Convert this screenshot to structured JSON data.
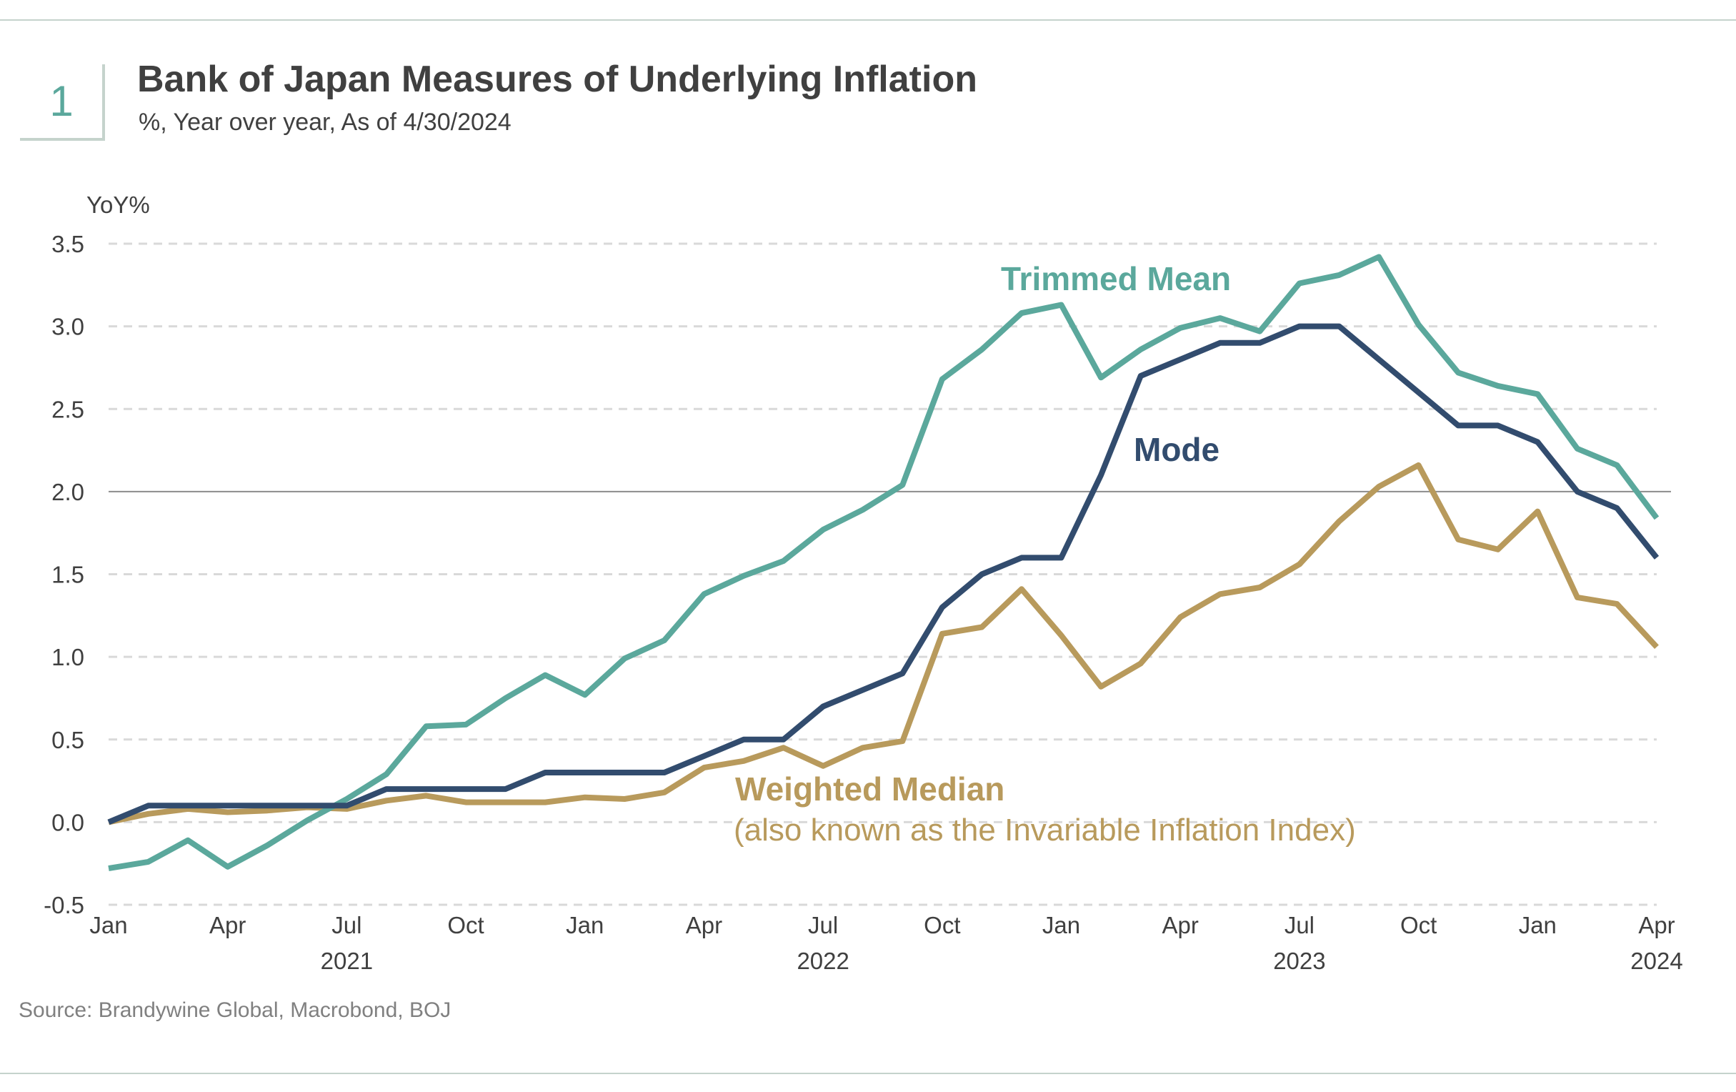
{
  "header": {
    "number": "1",
    "title": "Bank of Japan Measures of Underlying Inflation",
    "subtitle": "%, Year over year, As of 4/30/2024"
  },
  "source": "Source: Brandywine Global, Macrobond, BOJ",
  "chart_data": {
    "type": "line",
    "title": "Bank of Japan Measures of Underlying Inflation",
    "subtitle": "%, Year over year, As of 4/30/2024",
    "ylabel": "YoY%",
    "ylim": [
      -0.5,
      3.5
    ],
    "yticks": [
      "3.5",
      "3.0",
      "2.5",
      "2.0",
      "1.5",
      "1.0",
      "0.5",
      "0.0",
      "-0.5"
    ],
    "ytick_values": [
      3.5,
      3.0,
      2.5,
      2.0,
      1.5,
      1.0,
      0.5,
      0.0,
      -0.5
    ],
    "x_start": "2021-01",
    "x_end": "2024-04",
    "x_frequency": "monthly",
    "xticks": [
      "Jan",
      "Apr",
      "Jul",
      "Oct",
      "Jan",
      "Apr",
      "Jul",
      "Oct",
      "Jan",
      "Apr",
      "Jul",
      "Oct",
      "Jan",
      "Apr"
    ],
    "xtick_dates": [
      "2021-01",
      "2021-04",
      "2021-07",
      "2021-10",
      "2022-01",
      "2022-04",
      "2022-07",
      "2022-10",
      "2023-01",
      "2023-04",
      "2023-07",
      "2023-10",
      "2024-01",
      "2024-04"
    ],
    "year_labels": [
      "2021",
      "2022",
      "2023",
      "2024"
    ],
    "year_label_dates": [
      "2021-07",
      "2022-07",
      "2023-07",
      "2024-04"
    ],
    "grid": "horizontal dashed",
    "reference_line": 2.0,
    "legend": "inline labels",
    "series": [
      {
        "name": "Trimmed Mean",
        "color": "#5ba89c",
        "values": [
          -0.28,
          -0.24,
          -0.11,
          -0.27,
          -0.14,
          0.01,
          0.14,
          0.29,
          0.58,
          0.59,
          0.75,
          0.89,
          0.77,
          0.99,
          1.1,
          1.38,
          1.49,
          1.58,
          1.77,
          1.89,
          2.04,
          2.68,
          2.86,
          3.08,
          3.13,
          2.69,
          2.86,
          2.99,
          3.05,
          2.97,
          3.26,
          3.31,
          3.42,
          3.01,
          2.72,
          2.64,
          2.59,
          2.26,
          2.16,
          1.84
        ]
      },
      {
        "name": "Mode",
        "color": "#324c6e",
        "values": [
          0.0,
          0.1,
          0.1,
          0.1,
          0.1,
          0.1,
          0.1,
          0.2,
          0.2,
          0.2,
          0.2,
          0.3,
          0.3,
          0.3,
          0.3,
          0.4,
          0.5,
          0.5,
          0.7,
          0.8,
          0.9,
          1.3,
          1.5,
          1.6,
          1.6,
          2.1,
          2.7,
          2.8,
          2.9,
          2.9,
          3.0,
          3.0,
          2.8,
          2.6,
          2.4,
          2.4,
          2.3,
          2.0,
          1.9,
          1.6
        ]
      },
      {
        "name": "Weighted Median",
        "note": "(also known as the Invariable Inflation Index)",
        "color": "#b89a5c",
        "values": [
          0.0,
          0.05,
          0.08,
          0.06,
          0.07,
          0.09,
          0.08,
          0.13,
          0.16,
          0.12,
          0.12,
          0.12,
          0.15,
          0.14,
          0.18,
          0.33,
          0.37,
          0.45,
          0.34,
          0.45,
          0.49,
          1.14,
          1.18,
          1.41,
          1.13,
          0.82,
          0.96,
          1.24,
          1.38,
          1.42,
          1.56,
          1.82,
          2.03,
          2.16,
          1.71,
          1.65,
          1.88,
          1.36,
          1.32,
          1.06
        ]
      }
    ]
  }
}
